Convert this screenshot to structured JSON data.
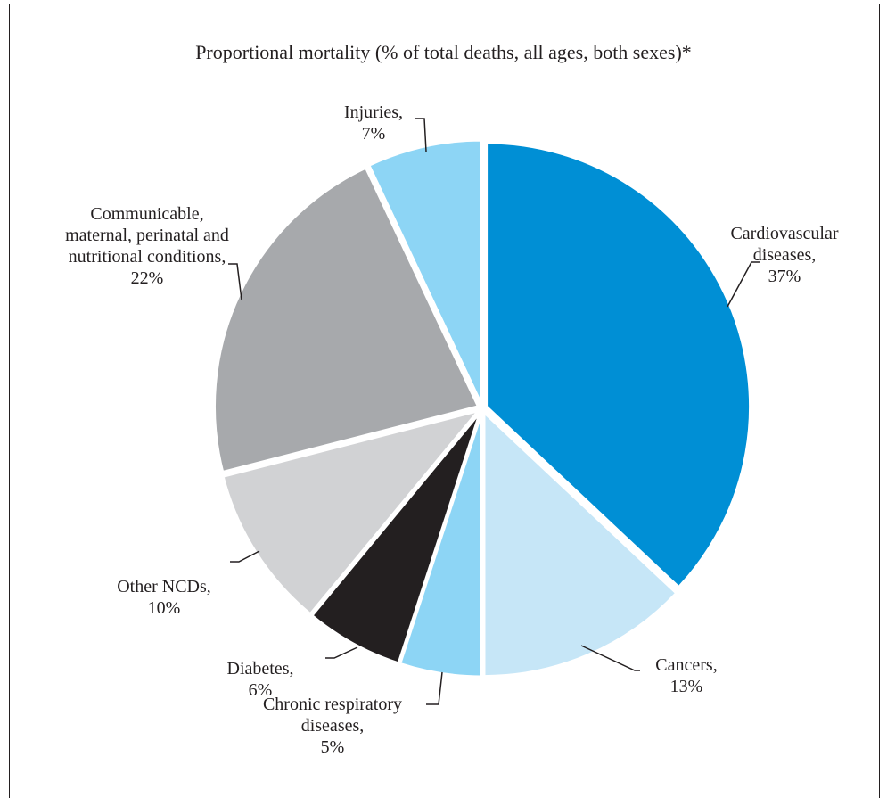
{
  "chart_data": {
    "type": "pie",
    "title": "Proportional mortality (% of total deaths, all ages, both sexes)*",
    "series": [
      {
        "label": [
          "Cardiovascular",
          "diseases,",
          "37%"
        ],
        "value": 37,
        "color": "#008fd5"
      },
      {
        "label": [
          "Cancers,",
          "13%"
        ],
        "value": 13,
        "color": "#c6e6f7"
      },
      {
        "label": [
          "Chronic respiratory",
          "diseases,",
          "5%"
        ],
        "value": 5,
        "color": "#8dd5f5"
      },
      {
        "label": [
          "Diabetes,",
          "6%"
        ],
        "value": 6,
        "color": "#231f20"
      },
      {
        "label": [
          "Other NCDs,",
          "10%"
        ],
        "value": 10,
        "color": "#d1d2d4"
      },
      {
        "label": [
          "Communicable,",
          "maternal, perinatal and",
          "nutritional conditions,",
          "22%"
        ],
        "value": 22,
        "color": "#a7a9ac"
      },
      {
        "label": [
          "Injuries,",
          "7%"
        ],
        "value": 7,
        "color": "#8dd5f5"
      }
    ],
    "start": "12 o'clock",
    "direction": "clockwise",
    "legend": "none (direct labels)"
  }
}
